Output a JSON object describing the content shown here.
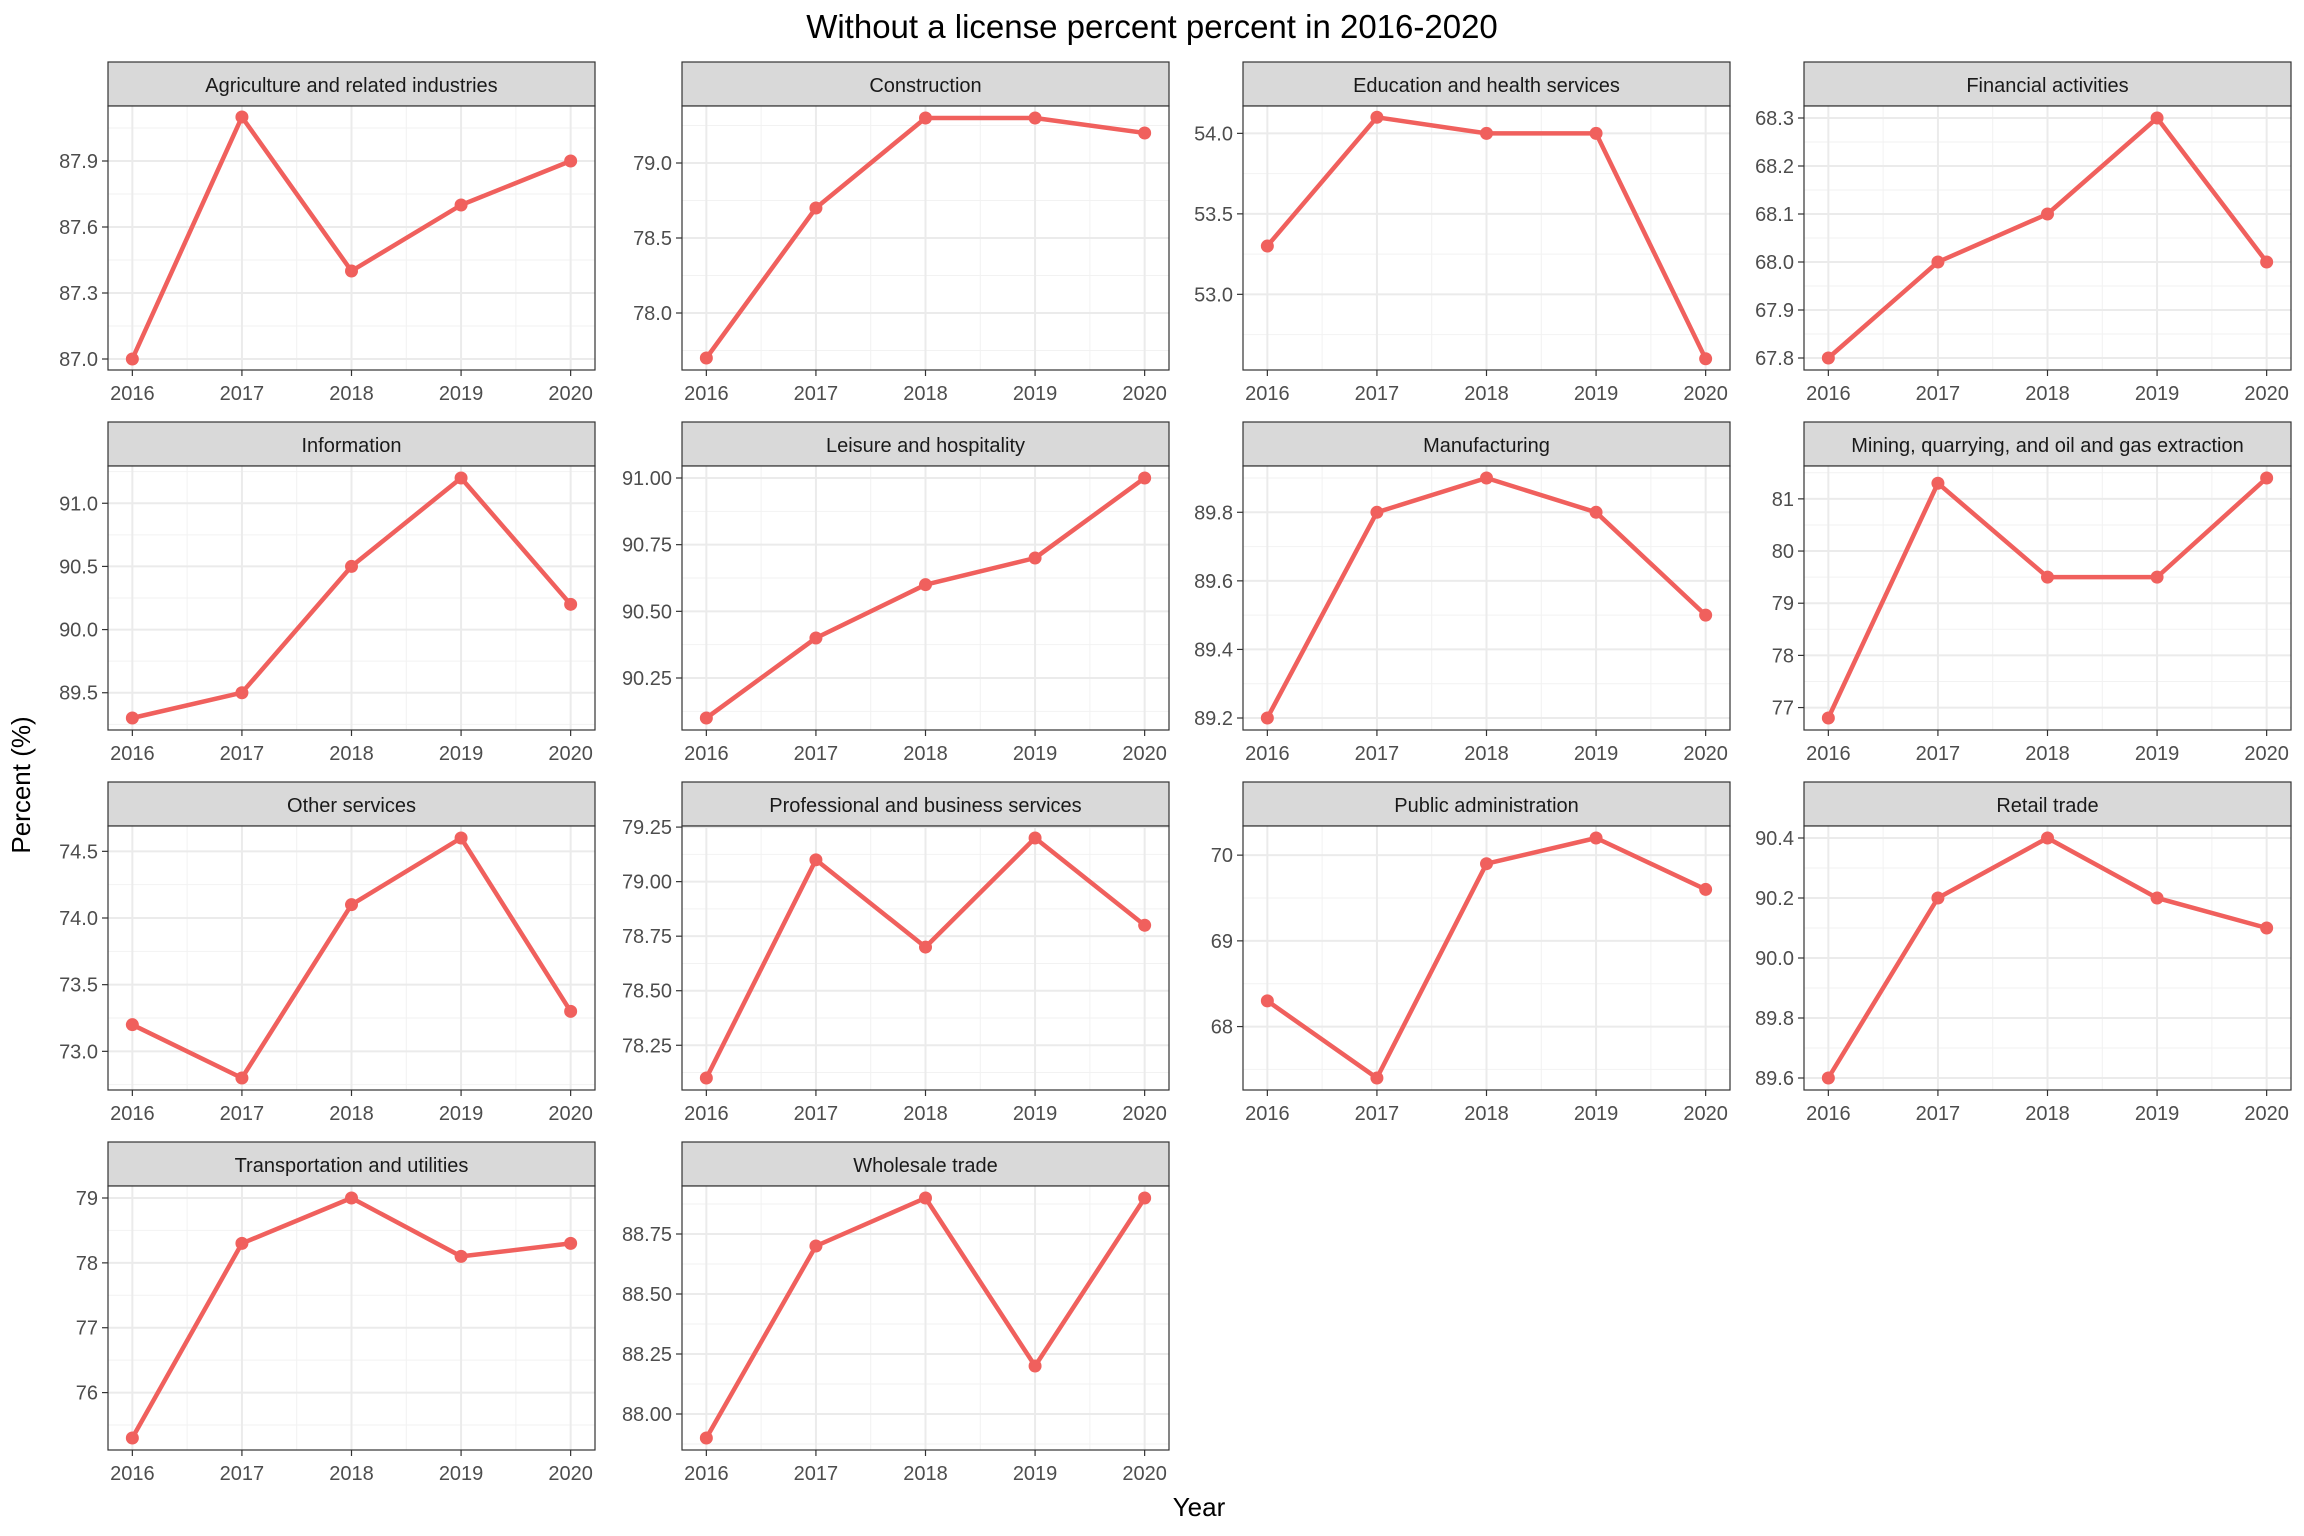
{
  "title": "Without a license percent percent in 2016-2020",
  "xlabel": "Year",
  "ylabel": "Percent (%)",
  "colors": {
    "line": "#F0605D",
    "strip_fill": "#D9D9D9",
    "strip_border": "#333333",
    "panel_border": "#333333",
    "grid": "#EBEBEB",
    "text": "#4D4D4D"
  },
  "chart_data": {
    "type": "line",
    "facet_layout": "4 columns x 4 rows",
    "grid": true,
    "x": [
      "2016",
      "2017",
      "2018",
      "2019",
      "2020"
    ],
    "panels": [
      {
        "name": "Agriculture and related industries",
        "values": [
          87.0,
          88.1,
          87.4,
          87.7,
          87.9
        ],
        "ylim": [
          86.95,
          88.15
        ],
        "yticks": [
          87.0,
          87.3,
          87.6,
          87.9
        ],
        "ytick_labels": [
          "87.0",
          "87.3",
          "87.6",
          "87.9"
        ]
      },
      {
        "name": "Construction",
        "values": [
          77.7,
          78.7,
          79.3,
          79.3,
          79.2
        ],
        "ylim": [
          77.62,
          79.38
        ],
        "yticks": [
          78.0,
          78.5,
          79.0
        ],
        "ytick_labels": [
          "78.0",
          "78.5",
          "79.0"
        ]
      },
      {
        "name": "Education and health services",
        "values": [
          53.3,
          54.1,
          54.0,
          54.0,
          52.6
        ],
        "ylim": [
          52.53,
          54.17
        ],
        "yticks": [
          53.0,
          53.5,
          54.0
        ],
        "ytick_labels": [
          "53.0",
          "53.5",
          "54.0"
        ]
      },
      {
        "name": "Financial activities",
        "values": [
          67.8,
          68.0,
          68.1,
          68.3,
          68.0
        ],
        "ylim": [
          67.775,
          68.325
        ],
        "yticks": [
          67.8,
          67.9,
          68.0,
          68.1,
          68.2,
          68.3
        ],
        "ytick_labels": [
          "67.8",
          "67.9",
          "68.0",
          "68.1",
          "68.2",
          "68.3"
        ]
      },
      {
        "name": "Information",
        "values": [
          89.3,
          89.5,
          90.5,
          91.2,
          90.2
        ],
        "ylim": [
          89.205,
          91.295
        ],
        "yticks": [
          89.5,
          90.0,
          90.5,
          91.0
        ],
        "ytick_labels": [
          "89.5",
          "90.0",
          "90.5",
          "91.0"
        ]
      },
      {
        "name": "Leisure and hospitality",
        "values": [
          90.1,
          90.4,
          90.6,
          90.7,
          91.0
        ],
        "ylim": [
          90.055,
          91.045
        ],
        "yticks": [
          90.25,
          90.5,
          90.75,
          91.0
        ],
        "ytick_labels": [
          "90.25",
          "90.50",
          "90.75",
          "91.00"
        ]
      },
      {
        "name": "Manufacturing",
        "values": [
          89.2,
          89.8,
          89.9,
          89.8,
          89.5
        ],
        "ylim": [
          89.165,
          89.935
        ],
        "yticks": [
          89.2,
          89.4,
          89.6,
          89.8
        ],
        "ytick_labels": [
          "89.2",
          "89.4",
          "89.6",
          "89.8"
        ]
      },
      {
        "name": "Mining, quarrying, and oil and gas extraction",
        "values": [
          76.8,
          81.3,
          79.5,
          79.5,
          81.4
        ],
        "ylim": [
          76.57,
          81.63
        ],
        "yticks": [
          77,
          78,
          79,
          80,
          81
        ],
        "ytick_labels": [
          "77",
          "78",
          "79",
          "80",
          "81"
        ]
      },
      {
        "name": "Other services",
        "values": [
          73.2,
          72.8,
          74.1,
          74.6,
          73.3
        ],
        "ylim": [
          72.71,
          74.69
        ],
        "yticks": [
          73.0,
          73.5,
          74.0,
          74.5
        ],
        "ytick_labels": [
          "73.0",
          "73.5",
          "74.0",
          "74.5"
        ]
      },
      {
        "name": "Professional and business services",
        "values": [
          78.1,
          79.1,
          78.7,
          79.2,
          78.8
        ],
        "ylim": [
          78.045,
          79.255
        ],
        "yticks": [
          78.25,
          78.5,
          78.75,
          79.0,
          79.25
        ],
        "ytick_labels": [
          "78.25",
          "78.50",
          "78.75",
          "79.00",
          "79.25"
        ]
      },
      {
        "name": "Public administration",
        "values": [
          68.3,
          67.4,
          69.9,
          70.2,
          69.6
        ],
        "ylim": [
          67.26,
          70.34
        ],
        "yticks": [
          68,
          69,
          70
        ],
        "ytick_labels": [
          "68",
          "69",
          "70"
        ]
      },
      {
        "name": "Retail trade",
        "values": [
          89.6,
          90.2,
          90.4,
          90.2,
          90.1
        ],
        "ylim": [
          89.56,
          90.44
        ],
        "yticks": [
          89.6,
          89.8,
          90.0,
          90.2,
          90.4
        ],
        "ytick_labels": [
          "89.6",
          "89.8",
          "90.0",
          "90.2",
          "90.4"
        ]
      },
      {
        "name": "Transportation and utilities",
        "values": [
          75.3,
          78.3,
          79.0,
          78.1,
          78.3
        ],
        "ylim": [
          75.115,
          79.185
        ],
        "yticks": [
          76,
          77,
          78,
          79
        ],
        "ytick_labels": [
          "76",
          "77",
          "78",
          "79"
        ]
      },
      {
        "name": "Wholesale trade",
        "values": [
          87.9,
          88.7,
          88.9,
          88.2,
          88.9
        ],
        "ylim": [
          87.85,
          88.95
        ],
        "yticks": [
          88.0,
          88.25,
          88.5,
          88.75
        ],
        "ytick_labels": [
          "88.00",
          "88.25",
          "88.50",
          "88.75"
        ]
      }
    ]
  }
}
